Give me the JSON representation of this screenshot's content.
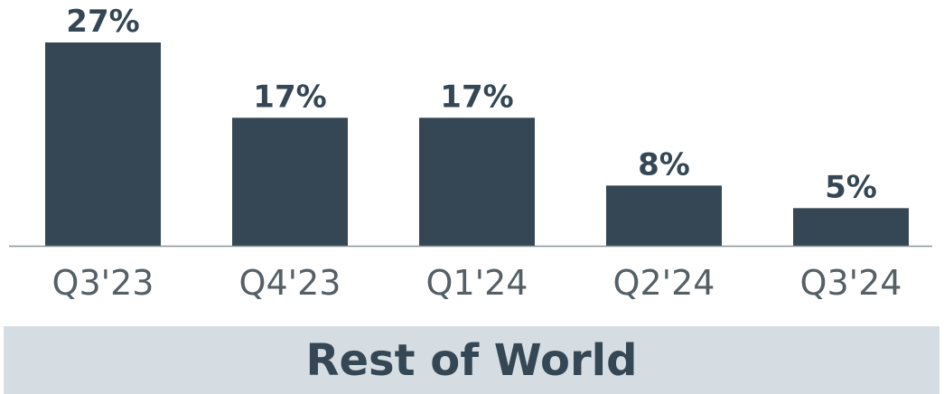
{
  "colors": {
    "bar": "#354754",
    "axis": "#8c969c",
    "value_label": "#354754",
    "tick_label": "#555f66",
    "banner_bg": "#d5dde3",
    "banner_text": "#354754"
  },
  "banner": {
    "label": "Rest of World"
  },
  "chart_data": {
    "type": "bar",
    "categories": [
      "Q3'23",
      "Q4'23",
      "Q1'24",
      "Q2'24",
      "Q3'24"
    ],
    "values": [
      27,
      17,
      17,
      8,
      5
    ],
    "data_labels": [
      "27%",
      "17%",
      "17%",
      "8%",
      "5%"
    ],
    "unit": "%",
    "title": "",
    "xlabel": "",
    "ylabel": "",
    "ylim": [
      0,
      27
    ],
    "grid": false,
    "legend": "none"
  }
}
